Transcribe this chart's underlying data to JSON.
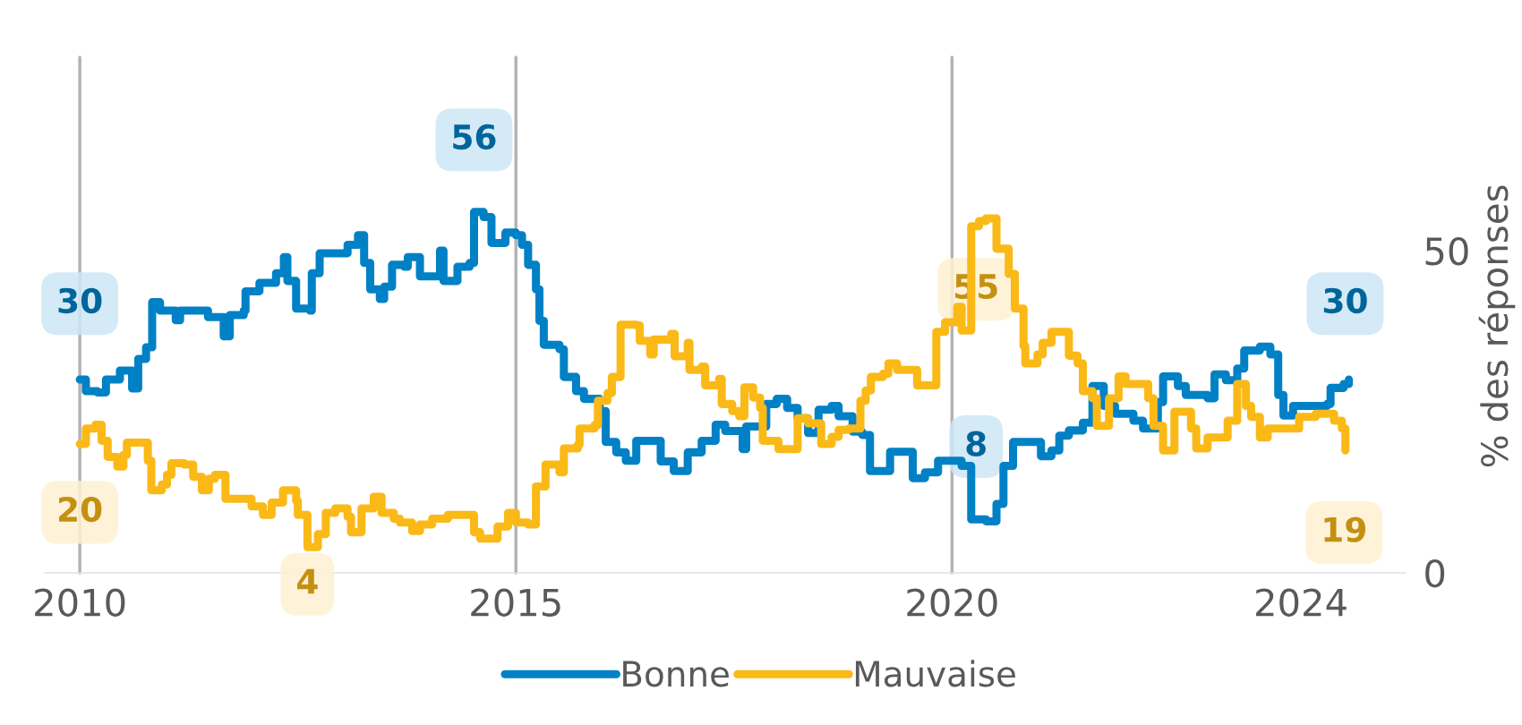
{
  "chart_data": {
    "type": "step",
    "ylabel": "% des réponses",
    "xlim": [
      2009.6,
      2025.2
    ],
    "ylim": [
      0,
      80
    ],
    "xticks": [
      2010,
      2015,
      2020,
      2024
    ],
    "yticks": [
      0,
      50
    ],
    "grid": false,
    "legend": "bottom",
    "marker": "none",
    "line_style": "solid",
    "ref_lines": [
      {
        "axis": "x",
        "value": 2010,
        "color": "#b3b3b3"
      },
      {
        "axis": "x",
        "value": 2015,
        "color": "#b3b3b3"
      },
      {
        "axis": "x",
        "value": 2020,
        "color": "#b3b3b3"
      }
    ],
    "series": [
      {
        "name": "Bonne",
        "color": "#0081c6",
        "x": [
          2010.0,
          2010.07,
          2010.2,
          2010.3,
          2010.46,
          2010.6,
          2010.67,
          2010.76,
          2010.83,
          2010.92,
          2011.1,
          2011.15,
          2011.38,
          2011.47,
          2011.65,
          2011.72,
          2011.88,
          2011.9,
          2012.06,
          2012.25,
          2012.34,
          2012.38,
          2012.48,
          2012.64,
          2012.66,
          2012.75,
          2012.98,
          2013.07,
          2013.19,
          2013.26,
          2013.33,
          2013.44,
          2013.49,
          2013.58,
          2013.72,
          2013.76,
          2013.9,
          2014.08,
          2014.13,
          2014.17,
          2014.29,
          2014.33,
          2014.47,
          2014.52,
          2014.63,
          2014.72,
          2014.82,
          2014.88,
          2015.0,
          2015.07,
          2015.14,
          2015.23,
          2015.27,
          2015.32,
          2015.5,
          2015.55,
          2015.69,
          2015.78,
          2015.96,
          2016.03,
          2016.15,
          2016.26,
          2016.38,
          2016.66,
          2016.81,
          2016.97,
          2017.13,
          2017.29,
          2017.4,
          2017.6,
          2017.64,
          2017.87,
          2017.99,
          2018.11,
          2018.23,
          2018.35,
          2018.47,
          2018.62,
          2018.7,
          2018.86,
          2018.97,
          2019.06,
          2019.29,
          2019.55,
          2019.69,
          2019.84,
          2020.11,
          2020.22,
          2020.39,
          2020.51,
          2020.59,
          2020.7,
          2021.02,
          2021.14,
          2021.23,
          2021.34,
          2021.5,
          2021.61,
          2021.74,
          2021.87,
          2022.08,
          2022.19,
          2022.36,
          2022.42,
          2022.59,
          2022.68,
          2022.93,
          2023.01,
          2023.14,
          2023.27,
          2023.35,
          2023.53,
          2023.65,
          2023.74,
          2023.8,
          2023.91,
          2024.3,
          2024.34,
          2024.49,
          2024.55
        ],
        "values": [
          30,
          28.2,
          28,
          30,
          31.4,
          28.6,
          33.2,
          35,
          42,
          40.7,
          39.2,
          40.7,
          40.7,
          39.7,
          36.7,
          40,
          40.7,
          43.7,
          45,
          46.5,
          49,
          45.3,
          41,
          40.7,
          46.5,
          49.6,
          49.6,
          50.9,
          52.4,
          48.1,
          44,
          42.5,
          44.4,
          47.8,
          47.5,
          49,
          46,
          46,
          50,
          45.3,
          45.3,
          47.5,
          48.1,
          56,
          55.2,
          51.2,
          51.2,
          52.8,
          52.4,
          50.9,
          47.8,
          44,
          39.1,
          35.4,
          34.7,
          30.4,
          28.2,
          27,
          25.1,
          20.3,
          18.7,
          17.4,
          20.5,
          17.3,
          15.8,
          18.7,
          20.5,
          23,
          22,
          19.2,
          22.7,
          26.2,
          27,
          25.6,
          24,
          21.7,
          25.3,
          25.9,
          24.3,
          21.9,
          21.4,
          15.8,
          18.8,
          14.7,
          15.6,
          17.4,
          16.6,
          8.3,
          8,
          10.7,
          16.6,
          20.3,
          18.1,
          19,
          21.3,
          22.1,
          23.3,
          29,
          25.9,
          24.7,
          23.6,
          22.4,
          26.5,
          30.5,
          29,
          27.6,
          27.1,
          30.8,
          29.9,
          31.7,
          34.5,
          35.1,
          33.9,
          27.6,
          24.4,
          25.9,
          26.2,
          28.7,
          29.3,
          30
        ]
      },
      {
        "name": "Mauvaise",
        "color": "#fbb917",
        "x": [
          2010.0,
          2010.07,
          2010.18,
          2010.25,
          2010.32,
          2010.43,
          2010.5,
          2010.54,
          2010.71,
          2010.78,
          2010.82,
          2010.94,
          2011.0,
          2011.05,
          2011.2,
          2011.3,
          2011.4,
          2011.48,
          2011.55,
          2011.67,
          2011.97,
          2012.1,
          2012.2,
          2012.33,
          2012.48,
          2012.5,
          2012.61,
          2012.73,
          2012.82,
          2012.93,
          2013.07,
          2013.11,
          2013.23,
          2013.37,
          2013.46,
          2013.6,
          2013.67,
          2013.81,
          2013.9,
          2014.04,
          2014.22,
          2014.52,
          2014.59,
          2014.79,
          2014.91,
          2015.0,
          2015.14,
          2015.23,
          2015.34,
          2015.5,
          2015.55,
          2015.71,
          2015.73,
          2015.9,
          2015.94,
          2016.05,
          2016.1,
          2016.2,
          2016.38,
          2016.42,
          2016.54,
          2016.58,
          2016.78,
          2016.82,
          2016.97,
          2016.99,
          2017.13,
          2017.17,
          2017.33,
          2017.36,
          2017.48,
          2017.56,
          2017.62,
          2017.72,
          2017.8,
          2017.83,
          2018.01,
          2018.23,
          2018.35,
          2018.5,
          2018.62,
          2018.7,
          2018.82,
          2018.95,
          2019.01,
          2019.07,
          2019.21,
          2019.27,
          2019.37,
          2019.6,
          2019.82,
          2019.92,
          2020.06,
          2020.11,
          2020.22,
          2020.31,
          2020.39,
          2020.51,
          2020.65,
          2020.72,
          2020.82,
          2020.84,
          2020.98,
          2021.04,
          2021.14,
          2021.34,
          2021.44,
          2021.5,
          2021.61,
          2021.66,
          2021.8,
          2021.91,
          2021.99,
          2022.25,
          2022.31,
          2022.42,
          2022.55,
          2022.74,
          2022.8,
          2022.93,
          2023.16,
          2023.27,
          2023.37,
          2023.43,
          2023.53,
          2023.62,
          2023.98,
          2024.17,
          2024.38,
          2024.47,
          2024.51
        ],
        "values": [
          20,
          22.4,
          23,
          20.5,
          18,
          16.5,
          18.3,
          20.2,
          20.2,
          17.4,
          12.8,
          13.7,
          15.2,
          17,
          16.8,
          14.9,
          12.8,
          14.6,
          15.2,
          11.5,
          10.3,
          9,
          10.9,
          12.8,
          11.2,
          9,
          4,
          6,
          9.3,
          10,
          8.7,
          6.3,
          10,
          11.8,
          9.3,
          8.4,
          7.8,
          6.5,
          7.5,
          8.4,
          9,
          6.3,
          5.3,
          7.2,
          9.3,
          7.8,
          7.5,
          13.4,
          16.8,
          15.6,
          19.3,
          19.9,
          22.4,
          22.9,
          26.7,
          27.9,
          30.4,
          38.5,
          38.4,
          36,
          33.9,
          36.2,
          37.1,
          33.6,
          35.7,
          31.5,
          32,
          29.1,
          30.1,
          26.2,
          25.1,
          24.3,
          28.8,
          27.2,
          25.6,
          20.5,
          19.2,
          24,
          23.2,
          20,
          21.1,
          22.2,
          22.4,
          26.7,
          28.3,
          30.4,
          30.9,
          32.5,
          31.5,
          29.1,
          37.4,
          38.9,
          41.3,
          37.6,
          53.8,
          54.6,
          55,
          50.3,
          46.4,
          41,
          35.2,
          32.5,
          33.9,
          35.7,
          37.4,
          33.7,
          32.5,
          28.2,
          27.1,
          22.8,
          27.1,
          30.5,
          29.3,
          27.1,
          22.8,
          19,
          25,
          22.4,
          19.3,
          21,
          23.6,
          29.3,
          25.9,
          24.2,
          21,
          22.4,
          24.2,
          24.7,
          23.6,
          22.4,
          19
        ]
      }
    ],
    "annotations": [
      {
        "text": "30",
        "x": 2010.0,
        "y": 30
      },
      {
        "text": "20",
        "x": 2010.0,
        "y": 20
      },
      {
        "text": "56",
        "x": 2014.52,
        "y": 56
      },
      {
        "text": "4",
        "x": 2012.61,
        "y": 4
      },
      {
        "text": "55",
        "x": 2020.39,
        "y": 55
      },
      {
        "text": "8",
        "x": 2020.39,
        "y": 8
      },
      {
        "text": "30",
        "x": 2024.55,
        "y": 30
      },
      {
        "text": "19",
        "x": 2024.51,
        "y": 19
      }
    ]
  }
}
